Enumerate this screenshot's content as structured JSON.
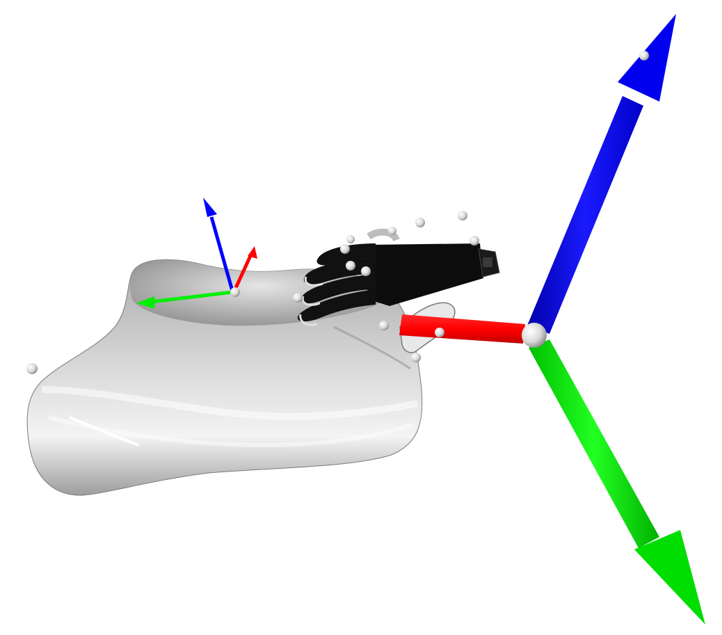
{
  "scene": {
    "background": "#ffffff",
    "colors": {
      "x_axis": "#ff0000",
      "y_axis": "#00ff00",
      "z_axis": "#0000ff",
      "object_light": "#f2f2f2",
      "object_mid": "#b8b8b8",
      "object_dark": "#6e6e6e",
      "gripper": "#0a0a0a",
      "marker": "#e6e6e6"
    },
    "objects": [
      {
        "name": "grasped-object",
        "kind": "smooth-mesh",
        "icon": "mesh-icon"
      },
      {
        "name": "robot-hand",
        "kind": "multi-finger-gripper",
        "icon": "hand-icon"
      },
      {
        "name": "world-frame",
        "kind": "coordinate-axes",
        "axes": [
          "x",
          "y",
          "z"
        ]
      },
      {
        "name": "object-frame",
        "kind": "coordinate-axes",
        "axes": [
          "x",
          "y",
          "z"
        ]
      }
    ],
    "marker_count": 13
  }
}
